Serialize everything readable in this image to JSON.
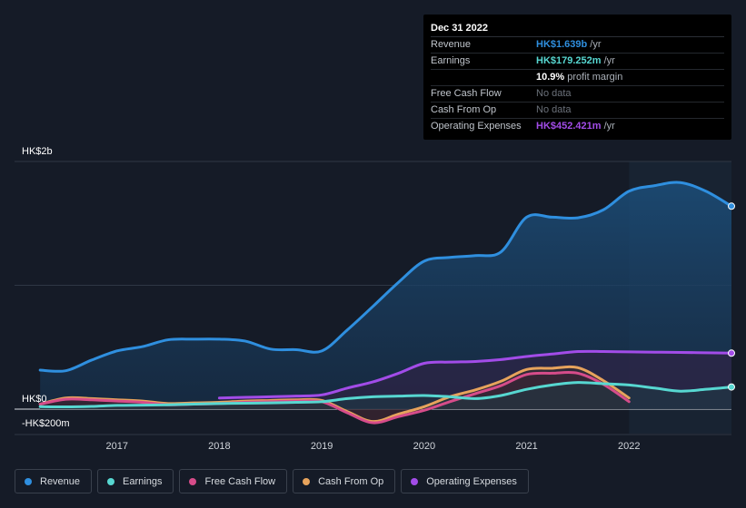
{
  "chart_data": {
    "type": "area",
    "currency": "HK$",
    "y_top_label": "HK$2b",
    "y_zero_label": "HK$0",
    "y_bottom_label": "-HK$200m",
    "ylim": [
      -200,
      2000
    ],
    "x_ticks": [
      "2017",
      "2018",
      "2019",
      "2020",
      "2021",
      "2022"
    ],
    "highlight_from": "2022",
    "series": [
      {
        "name": "Revenue",
        "key": "revenue",
        "color": "#2f8fdf",
        "points": [
          [
            2016.25,
            315
          ],
          [
            2016.5,
            310
          ],
          [
            2016.75,
            395
          ],
          [
            2017,
            470
          ],
          [
            2017.25,
            505
          ],
          [
            2017.5,
            560
          ],
          [
            2017.75,
            565
          ],
          [
            2018,
            565
          ],
          [
            2018.25,
            550
          ],
          [
            2018.5,
            485
          ],
          [
            2018.75,
            480
          ],
          [
            2019,
            470
          ],
          [
            2019.25,
            640
          ],
          [
            2019.5,
            830
          ],
          [
            2019.75,
            1025
          ],
          [
            2020,
            1195
          ],
          [
            2020.25,
            1225
          ],
          [
            2020.5,
            1240
          ],
          [
            2020.75,
            1270
          ],
          [
            2021,
            1550
          ],
          [
            2021.25,
            1550
          ],
          [
            2021.5,
            1545
          ],
          [
            2021.75,
            1610
          ],
          [
            2022,
            1760
          ],
          [
            2022.25,
            1805
          ],
          [
            2022.5,
            1830
          ],
          [
            2022.75,
            1760
          ],
          [
            2023,
            1639
          ]
        ]
      },
      {
        "name": "Earnings",
        "key": "earnings",
        "color": "#57d7d1",
        "points": [
          [
            2016.25,
            20
          ],
          [
            2016.5,
            18
          ],
          [
            2016.75,
            22
          ],
          [
            2017,
            30
          ],
          [
            2017.25,
            32
          ],
          [
            2017.5,
            35
          ],
          [
            2017.75,
            40
          ],
          [
            2018,
            45
          ],
          [
            2018.25,
            48
          ],
          [
            2018.5,
            50
          ],
          [
            2018.75,
            55
          ],
          [
            2019,
            60
          ],
          [
            2019.25,
            85
          ],
          [
            2019.5,
            100
          ],
          [
            2019.75,
            105
          ],
          [
            2020,
            110
          ],
          [
            2020.25,
            100
          ],
          [
            2020.5,
            85
          ],
          [
            2020.75,
            110
          ],
          [
            2021,
            160
          ],
          [
            2021.25,
            195
          ],
          [
            2021.5,
            215
          ],
          [
            2021.75,
            205
          ],
          [
            2022,
            195
          ],
          [
            2022.25,
            170
          ],
          [
            2022.5,
            145
          ],
          [
            2022.75,
            160
          ],
          [
            2023,
            179
          ]
        ]
      },
      {
        "name": "Free Cash Flow",
        "key": "fcf",
        "color": "#d64c8a",
        "points": [
          [
            2016.25,
            40
          ],
          [
            2016.5,
            80
          ],
          [
            2016.75,
            75
          ],
          [
            2017,
            65
          ],
          [
            2017.25,
            55
          ],
          [
            2017.5,
            35
          ],
          [
            2017.75,
            40
          ],
          [
            2018,
            45
          ],
          [
            2018.25,
            55
          ],
          [
            2018.5,
            60
          ],
          [
            2018.75,
            65
          ],
          [
            2019,
            60
          ],
          [
            2019.25,
            -30
          ],
          [
            2019.5,
            -110
          ],
          [
            2019.75,
            -60
          ],
          [
            2020,
            -10
          ],
          [
            2020.25,
            60
          ],
          [
            2020.5,
            125
          ],
          [
            2020.75,
            190
          ],
          [
            2021,
            280
          ],
          [
            2021.25,
            290
          ],
          [
            2021.5,
            290
          ],
          [
            2021.75,
            200
          ],
          [
            2022,
            60
          ]
        ]
      },
      {
        "name": "Cash From Op",
        "key": "cfo",
        "color": "#e7a35c",
        "points": [
          [
            2016.25,
            40
          ],
          [
            2016.5,
            90
          ],
          [
            2016.75,
            85
          ],
          [
            2017,
            75
          ],
          [
            2017.25,
            65
          ],
          [
            2017.5,
            45
          ],
          [
            2017.75,
            50
          ],
          [
            2018,
            55
          ],
          [
            2018.25,
            65
          ],
          [
            2018.5,
            70
          ],
          [
            2018.75,
            75
          ],
          [
            2019,
            70
          ],
          [
            2019.25,
            -20
          ],
          [
            2019.5,
            -100
          ],
          [
            2019.75,
            -40
          ],
          [
            2020,
            20
          ],
          [
            2020.25,
            100
          ],
          [
            2020.5,
            155
          ],
          [
            2020.75,
            225
          ],
          [
            2021,
            320
          ],
          [
            2021.25,
            330
          ],
          [
            2021.5,
            335
          ],
          [
            2021.75,
            230
          ],
          [
            2022,
            90
          ]
        ]
      },
      {
        "name": "Operating Expenses",
        "key": "opex",
        "color": "#a24ce8",
        "points": [
          [
            2018,
            90
          ],
          [
            2018.25,
            95
          ],
          [
            2018.5,
            100
          ],
          [
            2018.75,
            105
          ],
          [
            2019,
            115
          ],
          [
            2019.25,
            170
          ],
          [
            2019.5,
            220
          ],
          [
            2019.75,
            290
          ],
          [
            2020,
            370
          ],
          [
            2020.25,
            380
          ],
          [
            2020.5,
            385
          ],
          [
            2020.75,
            400
          ],
          [
            2021,
            425
          ],
          [
            2021.25,
            445
          ],
          [
            2021.5,
            465
          ],
          [
            2021.75,
            465
          ],
          [
            2022,
            462
          ],
          [
            2022.25,
            460
          ],
          [
            2022.5,
            458
          ],
          [
            2022.75,
            455
          ],
          [
            2023,
            452
          ]
        ]
      }
    ]
  },
  "tooltip": {
    "date": "Dec 31 2022",
    "rows": [
      {
        "label": "Revenue",
        "value": "HK$1.639b",
        "unit": "/yr",
        "color": "#2f8fdf"
      },
      {
        "label": "Earnings",
        "value": "HK$179.252m",
        "unit": "/yr",
        "color": "#57d7d1"
      },
      {
        "label": "",
        "value": "10.9%",
        "unit": "profit margin",
        "color": "#ffffff"
      },
      {
        "label": "Free Cash Flow",
        "value": "No data",
        "unit": "",
        "color": "muted"
      },
      {
        "label": "Cash From Op",
        "value": "No data",
        "unit": "",
        "color": "muted"
      },
      {
        "label": "Operating Expenses",
        "value": "HK$452.421m",
        "unit": "/yr",
        "color": "#a24ce8"
      }
    ]
  },
  "legend": [
    {
      "label": "Revenue",
      "color": "#2f8fdf"
    },
    {
      "label": "Earnings",
      "color": "#57d7d1"
    },
    {
      "label": "Free Cash Flow",
      "color": "#d64c8a"
    },
    {
      "label": "Cash From Op",
      "color": "#e7a35c"
    },
    {
      "label": "Operating Expenses",
      "color": "#a24ce8"
    }
  ]
}
